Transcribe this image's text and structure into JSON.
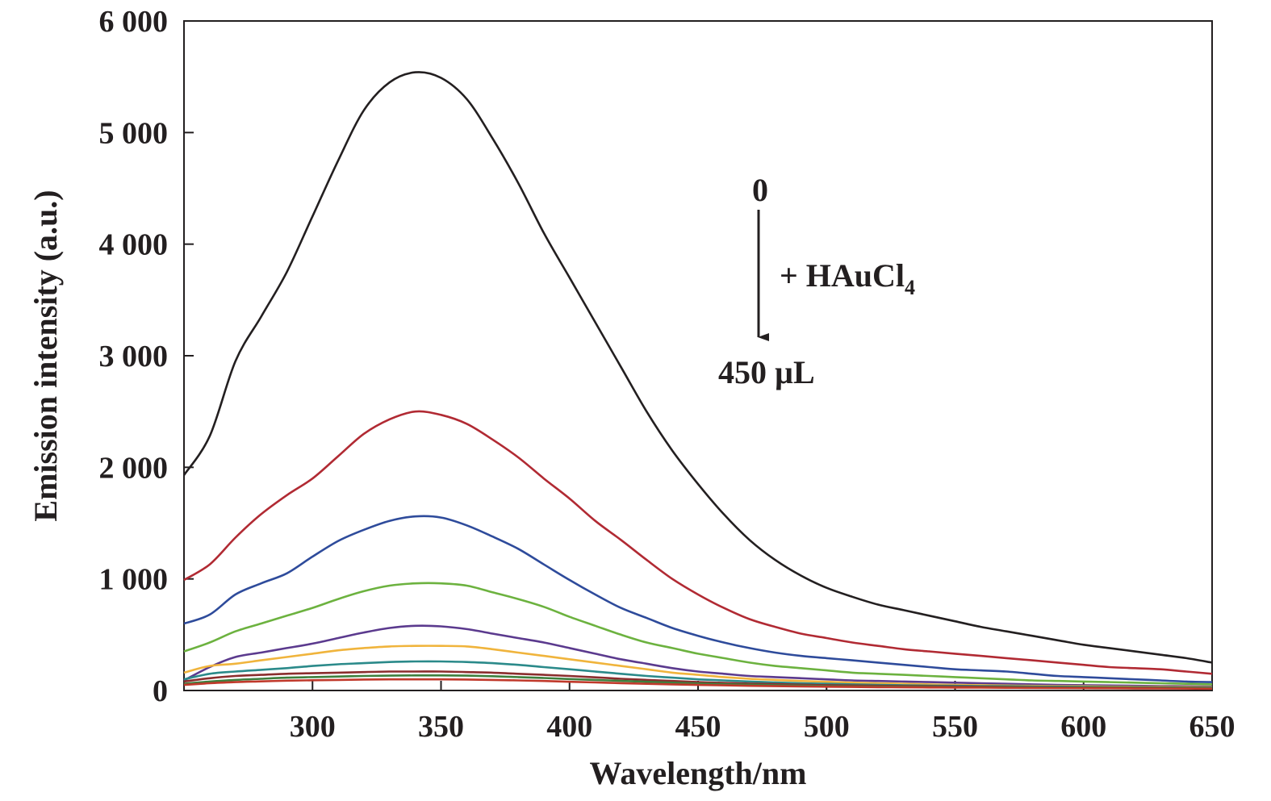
{
  "chart_data": {
    "type": "line",
    "title": "",
    "xlabel": "Wavelength/nm",
    "ylabel": "Emission intensity (a.u.)",
    "xlim": [
      250,
      650
    ],
    "ylim": [
      0,
      6000
    ],
    "x_ticks": [
      300,
      350,
      400,
      450,
      500,
      550,
      600,
      650
    ],
    "x_tick_labels": [
      "300",
      "350",
      "400",
      "450",
      "500",
      "550",
      "600",
      "650"
    ],
    "y_ticks": [
      0,
      1000,
      2000,
      3000,
      4000,
      5000,
      6000
    ],
    "y_tick_labels": [
      "0",
      "1 000",
      "2 000",
      "3 000",
      "4 000",
      "5 000",
      "6 000"
    ],
    "grid": false,
    "legend": "none",
    "x": [
      250,
      260,
      270,
      280,
      290,
      300,
      310,
      320,
      330,
      340,
      350,
      360,
      370,
      380,
      390,
      400,
      410,
      420,
      430,
      440,
      450,
      460,
      470,
      480,
      490,
      500,
      510,
      520,
      530,
      540,
      550,
      560,
      570,
      580,
      590,
      600,
      610,
      620,
      630,
      640,
      650
    ],
    "series": [
      {
        "color": "#231f20",
        "values": [
          1930,
          2280,
          2950,
          3350,
          3750,
          4250,
          4750,
          5200,
          5450,
          5540,
          5490,
          5300,
          4950,
          4550,
          4100,
          3700,
          3300,
          2900,
          2500,
          2150,
          1850,
          1580,
          1350,
          1170,
          1030,
          920,
          840,
          770,
          720,
          670,
          620,
          570,
          530,
          490,
          450,
          410,
          380,
          350,
          320,
          290,
          250
        ]
      },
      {
        "color": "#b12a33",
        "values": [
          990,
          1130,
          1370,
          1580,
          1750,
          1900,
          2100,
          2300,
          2430,
          2500,
          2470,
          2390,
          2250,
          2090,
          1900,
          1720,
          1520,
          1350,
          1170,
          1000,
          860,
          740,
          640,
          570,
          510,
          470,
          430,
          400,
          370,
          350,
          330,
          310,
          290,
          270,
          250,
          230,
          210,
          200,
          190,
          170,
          150
        ]
      },
      {
        "color": "#2e4b9b",
        "values": [
          600,
          680,
          860,
          960,
          1050,
          1200,
          1340,
          1440,
          1520,
          1560,
          1550,
          1480,
          1380,
          1270,
          1130,
          990,
          860,
          740,
          650,
          560,
          490,
          430,
          380,
          340,
          310,
          290,
          270,
          250,
          230,
          210,
          190,
          180,
          170,
          150,
          130,
          120,
          110,
          100,
          90,
          80,
          75
        ]
      },
      {
        "color": "#6cb23f",
        "values": [
          350,
          430,
          530,
          600,
          670,
          740,
          820,
          890,
          940,
          960,
          960,
          940,
          880,
          820,
          750,
          660,
          580,
          500,
          430,
          380,
          330,
          290,
          250,
          220,
          200,
          180,
          160,
          150,
          140,
          130,
          120,
          110,
          100,
          90,
          85,
          80,
          75,
          70,
          65,
          60,
          55
        ]
      },
      {
        "color": "#5b3a8e",
        "values": [
          90,
          210,
          300,
          340,
          380,
          420,
          470,
          520,
          560,
          580,
          575,
          550,
          510,
          470,
          430,
          380,
          330,
          280,
          240,
          200,
          170,
          150,
          130,
          120,
          110,
          100,
          90,
          85,
          80,
          75,
          70,
          65,
          60,
          55,
          50,
          48,
          45,
          42,
          40,
          38,
          35
        ]
      },
      {
        "color": "#f0b43c",
        "values": [
          160,
          220,
          240,
          270,
          300,
          330,
          360,
          380,
          395,
          400,
          400,
          395,
          370,
          340,
          310,
          280,
          250,
          220,
          190,
          160,
          140,
          120,
          105,
          95,
          85,
          78,
          70,
          65,
          60,
          55,
          50,
          48,
          45,
          42,
          40,
          38,
          35,
          33,
          32,
          31,
          30
        ]
      },
      {
        "color": "#2b8a8a",
        "values": [
          100,
          150,
          170,
          185,
          200,
          220,
          235,
          245,
          255,
          260,
          260,
          255,
          245,
          230,
          210,
          190,
          170,
          150,
          130,
          115,
          100,
          90,
          80,
          72,
          65,
          60,
          55,
          50,
          47,
          44,
          42,
          40,
          38,
          36,
          34,
          32,
          30,
          28,
          27,
          26,
          25
        ]
      },
      {
        "color": "#8b2d2d",
        "values": [
          80,
          110,
          130,
          140,
          150,
          155,
          160,
          165,
          170,
          170,
          170,
          165,
          160,
          150,
          140,
          130,
          118,
          105,
          95,
          85,
          75,
          68,
          62,
          57,
          52,
          48,
          45,
          42,
          40,
          38,
          36,
          34,
          32,
          30,
          28,
          27,
          26,
          25,
          24,
          23,
          22
        ]
      },
      {
        "color": "#3d7f3d",
        "values": [
          60,
          80,
          95,
          105,
          115,
          120,
          125,
          130,
          133,
          135,
          135,
          133,
          128,
          120,
          112,
          103,
          95,
          86,
          78,
          70,
          63,
          57,
          52,
          48,
          44,
          40,
          37,
          35,
          33,
          31,
          30,
          29,
          28,
          27,
          26,
          25,
          24,
          23,
          22,
          21,
          20
        ]
      },
      {
        "color": "#c0392b",
        "values": [
          50,
          65,
          75,
          82,
          88,
          92,
          95,
          98,
          100,
          100,
          100,
          98,
          95,
          90,
          85,
          78,
          72,
          66,
          60,
          55,
          50,
          46,
          42,
          39,
          36,
          34,
          32,
          30,
          28,
          27,
          26,
          25,
          24,
          23,
          22,
          21,
          20,
          19,
          18,
          17,
          16
        ]
      }
    ],
    "annotations": {
      "start_label": "0",
      "reagent_prefix": "+ HAuCl",
      "reagent_subscript": "4",
      "end_label": "450 µL"
    }
  }
}
